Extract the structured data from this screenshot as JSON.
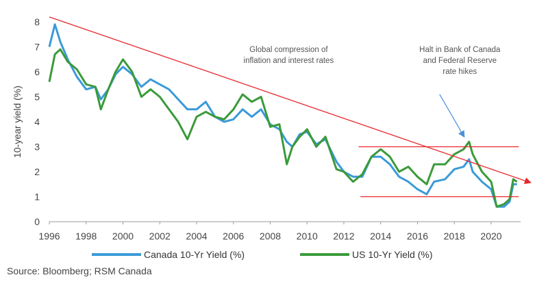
{
  "chart_data": {
    "type": "line",
    "ylabel": "10-year yield (%)",
    "xlabel": "",
    "xlim": [
      1996,
      2021.6
    ],
    "ylim": [
      0,
      8
    ],
    "xticks": [
      "1996",
      "1998",
      "2000",
      "2002",
      "2004",
      "2006",
      "2008",
      "2010",
      "2012",
      "2014",
      "2016",
      "2018",
      "2020"
    ],
    "yticks": [
      "0",
      "1",
      "2",
      "3",
      "4",
      "5",
      "6",
      "7",
      "8"
    ],
    "colors": {
      "canada": "#3a9ad9",
      "us": "#3a9a3a",
      "trend": "#e8262b",
      "arrow": "#4a90d9"
    },
    "series": [
      {
        "name": "Canada 10-Yr Yield (%)",
        "x": [
          1996.0,
          1996.3,
          1996.6,
          1997.0,
          1997.5,
          1998.0,
          1998.5,
          1998.8,
          1999.2,
          1999.6,
          2000.0,
          2000.5,
          2001.0,
          2001.5,
          2002.0,
          2002.5,
          2003.0,
          2003.5,
          2004.0,
          2004.5,
          2005.0,
          2005.5,
          2006.0,
          2006.5,
          2007.0,
          2007.5,
          2008.0,
          2008.5,
          2008.9,
          2009.2,
          2009.6,
          2010.0,
          2010.5,
          2011.0,
          2011.6,
          2012.0,
          2012.5,
          2013.0,
          2013.5,
          2014.0,
          2014.5,
          2015.0,
          2015.5,
          2016.0,
          2016.5,
          2016.9,
          2017.5,
          2018.0,
          2018.5,
          2018.8,
          2019.0,
          2019.5,
          2020.0,
          2020.3,
          2020.7,
          2021.0,
          2021.2,
          2021.4
        ],
        "y": [
          7.0,
          7.9,
          7.2,
          6.5,
          5.8,
          5.3,
          5.4,
          4.9,
          5.3,
          5.9,
          6.2,
          5.9,
          5.4,
          5.7,
          5.5,
          5.3,
          4.9,
          4.5,
          4.5,
          4.8,
          4.2,
          4.0,
          4.1,
          4.5,
          4.2,
          4.5,
          3.9,
          3.7,
          3.2,
          3.0,
          3.5,
          3.6,
          3.1,
          3.3,
          2.4,
          2.0,
          1.8,
          1.8,
          2.6,
          2.6,
          2.3,
          1.8,
          1.6,
          1.3,
          1.1,
          1.6,
          1.7,
          2.1,
          2.2,
          2.5,
          2.0,
          1.6,
          1.3,
          0.6,
          0.6,
          0.8,
          1.5,
          1.5
        ]
      },
      {
        "name": "US 10-Yr Yield (%)",
        "x": [
          1996.0,
          1996.3,
          1996.6,
          1997.0,
          1997.5,
          1998.0,
          1998.5,
          1998.8,
          1999.2,
          1999.6,
          2000.0,
          2000.5,
          2001.0,
          2001.5,
          2002.0,
          2002.5,
          2003.0,
          2003.5,
          2004.0,
          2004.5,
          2005.0,
          2005.5,
          2006.0,
          2006.5,
          2007.0,
          2007.5,
          2008.0,
          2008.5,
          2008.9,
          2009.2,
          2009.6,
          2010.0,
          2010.5,
          2011.0,
          2011.6,
          2012.0,
          2012.5,
          2013.0,
          2013.5,
          2014.0,
          2014.5,
          2015.0,
          2015.5,
          2016.0,
          2016.5,
          2016.9,
          2017.5,
          2018.0,
          2018.5,
          2018.8,
          2019.0,
          2019.5,
          2020.0,
          2020.3,
          2020.7,
          2021.0,
          2021.2,
          2021.4
        ],
        "y": [
          5.6,
          6.7,
          6.9,
          6.4,
          6.1,
          5.5,
          5.4,
          4.5,
          5.3,
          6.0,
          6.5,
          6.0,
          5.0,
          5.3,
          5.0,
          4.5,
          4.0,
          3.3,
          4.2,
          4.4,
          4.2,
          4.1,
          4.5,
          5.1,
          4.8,
          5.0,
          3.8,
          3.9,
          2.3,
          3.0,
          3.4,
          3.7,
          3.0,
          3.4,
          2.1,
          2.0,
          1.6,
          1.9,
          2.6,
          2.9,
          2.6,
          2.0,
          2.2,
          1.8,
          1.5,
          2.3,
          2.3,
          2.7,
          2.9,
          3.2,
          2.7,
          2.0,
          1.6,
          0.6,
          0.7,
          0.9,
          1.7,
          1.6
        ]
      }
    ],
    "trendline": {
      "x": [
        1996.0,
        2021.6
      ],
      "y": [
        8.2,
        1.65
      ]
    },
    "ranges": [
      {
        "x": [
          2012.8,
          2021.5
        ],
        "y": 3.0
      },
      {
        "x": [
          2012.9,
          2021.5
        ],
        "y": 1.0
      }
    ],
    "annotations": [
      {
        "lines": [
          "Global compression of",
          "inflation and interest rates"
        ],
        "x": 2009.0,
        "y": 6.8
      },
      {
        "lines": [
          "Halt in Bank of Canada",
          "and Federal Reserve",
          "rate hikes"
        ],
        "x": 2018.3,
        "y": 6.8
      }
    ],
    "legend_position": "bottom"
  },
  "footer": {
    "source": "Source: Bloomberg; RSM Canada"
  }
}
